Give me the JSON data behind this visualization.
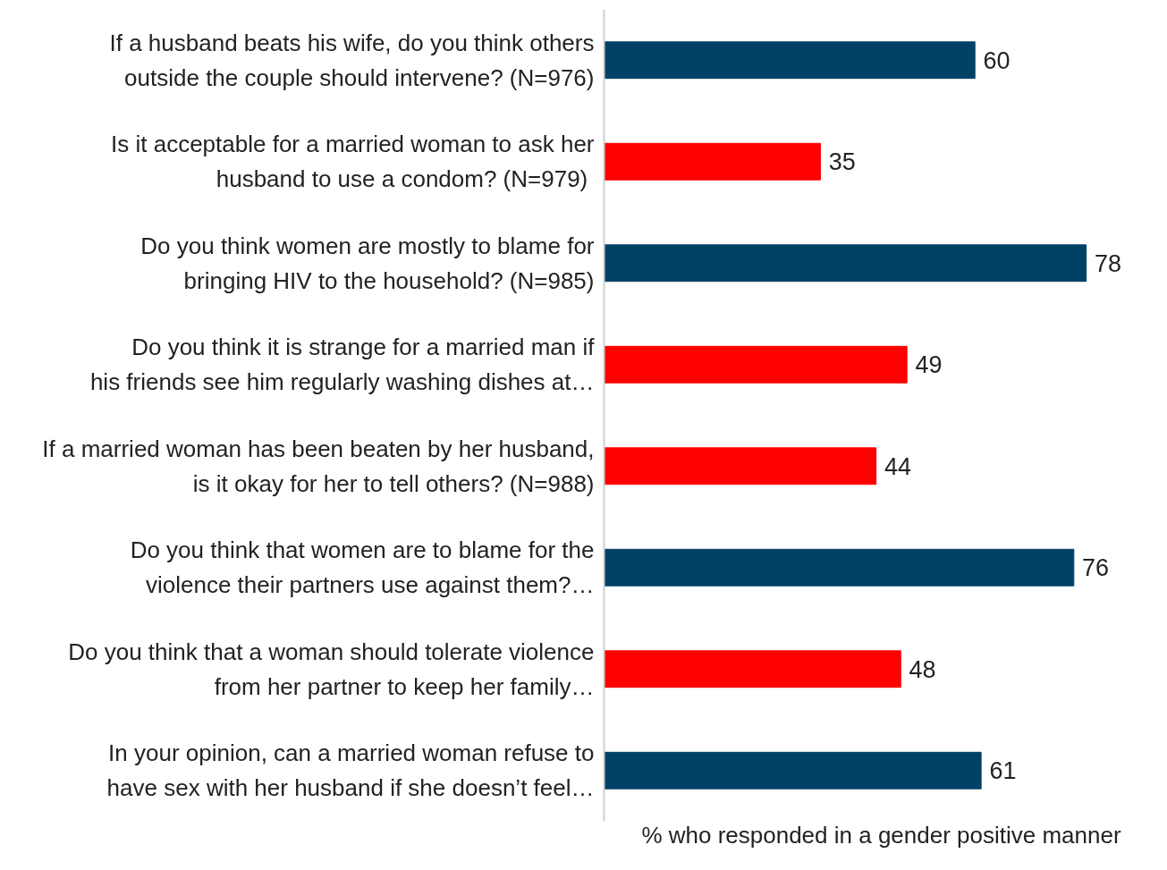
{
  "chart_data": {
    "type": "bar",
    "orientation": "horizontal",
    "categories": [
      "If a husband beats his wife, do you think others outside the couple should intervene? (N=976)",
      "Is it acceptable for a married woman to ask her husband to use a condom?  (N=979)",
      "Do you think women are mostly to blame for bringing HIV to the household? (N=985)",
      "Do you think it is strange for a married man if his friends see him regularly washing dishes at…",
      "If a married woman has been beaten by her husband, is it okay for her to tell others? (N=988)",
      "Do you think that women are to blame for the violence their partners use against them?…",
      "Do you think that a woman should tolerate violence from her partner to keep her family…",
      "In your opinion, can a married woman refuse to have sex with her husband if she doesn’t feel…"
    ],
    "values": [
      60,
      35,
      78,
      49,
      44,
      76,
      48,
      61
    ],
    "colors": [
      "#004165",
      "#ff0000",
      "#004165",
      "#ff0000",
      "#ff0000",
      "#004165",
      "#ff0000",
      "#004165"
    ],
    "xlabel": "% who responded in a gender positive manner",
    "tick_labels": "y",
    "data_labels": true
  }
}
